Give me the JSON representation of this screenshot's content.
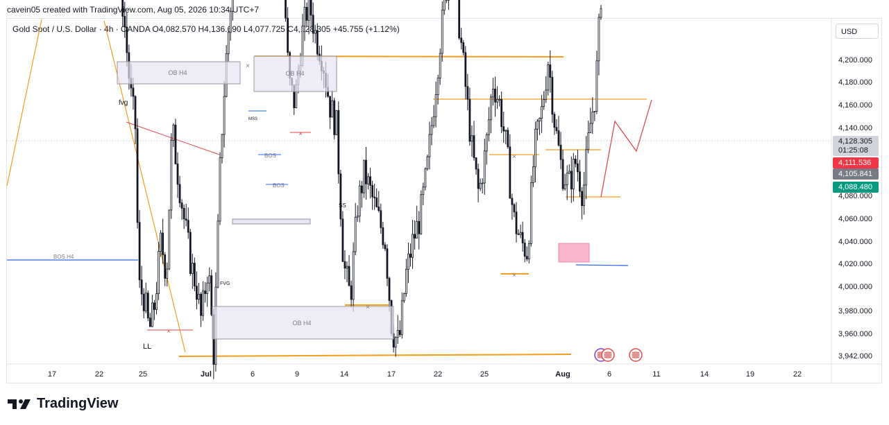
{
  "header": {
    "title": "cavein05 created with TradingView.com, Aug 05, 2026 10:34 UTC+7"
  },
  "legend": {
    "symbol": "Gold Spot / U.S. Dollar · 4h · OANDA",
    "open": "O4,082.570",
    "high": "H4,136.690",
    "low": "L4,077.725",
    "close": "C4,128.305",
    "change": "+45.755 (+1.12%)"
  },
  "currency_button": "USD",
  "colors": {
    "up": "#131722",
    "orange": "#f59c1a",
    "red": "#e04a4a",
    "blue": "#2962ff",
    "ob_fill": "#e8e4f4",
    "pink": "#f7b4cc",
    "label_red": "#f23645",
    "label_gray": "#787b86",
    "label_green": "#089981",
    "label_price": "#d1d4dc"
  },
  "price_labels": [
    {
      "text": "4,128.305",
      "sub": "01:25:08",
      "price": 4128.305,
      "kind": "current"
    },
    {
      "text": "4,111.536",
      "price": 4111.536,
      "kind": "red"
    },
    {
      "text": "4,105.841",
      "price": 4105.841,
      "kind": "gray"
    },
    {
      "text": "4,088.480",
      "price": 4088.48,
      "kind": "green"
    }
  ],
  "chart_data": {
    "type": "candlestick",
    "y_axis": {
      "ticks": [
        "4,200.000",
        "4,180.000",
        "4,160.000",
        "4,140.000",
        "4,080.000",
        "4,060.000",
        "4,040.000",
        "4,020.000",
        "4,000.000",
        "3,980.000",
        "3,960.000",
        "3,942.000"
      ],
      "tick_values": [
        4200,
        4180,
        4160,
        4140,
        4080,
        4060,
        4040,
        4020,
        4000,
        3980,
        3960,
        3942
      ]
    },
    "x_axis": {
      "ticks": [
        "17",
        "22",
        "25",
        "Jul",
        "6",
        "9",
        "14",
        "17",
        "22",
        "25",
        "Aug",
        "6",
        "11",
        "14",
        "19",
        "22"
      ]
    },
    "annotations": [
      {
        "text": "OB H4",
        "kind": "ob"
      },
      {
        "text": "OB H4",
        "kind": "ob"
      },
      {
        "text": "OB H4",
        "kind": "ob"
      },
      {
        "text": "fvg",
        "kind": "label"
      },
      {
        "text": "FVG",
        "kind": "label"
      },
      {
        "text": "LL",
        "kind": "label"
      },
      {
        "text": "MSS",
        "kind": "label"
      },
      {
        "text": "SS",
        "kind": "label"
      },
      {
        "text": "BOS",
        "kind": "label"
      },
      {
        "text": "BOS",
        "kind": "label"
      },
      {
        "text": "BOS H4",
        "kind": "label"
      }
    ]
  },
  "footer": {
    "brand": "TradingView"
  }
}
